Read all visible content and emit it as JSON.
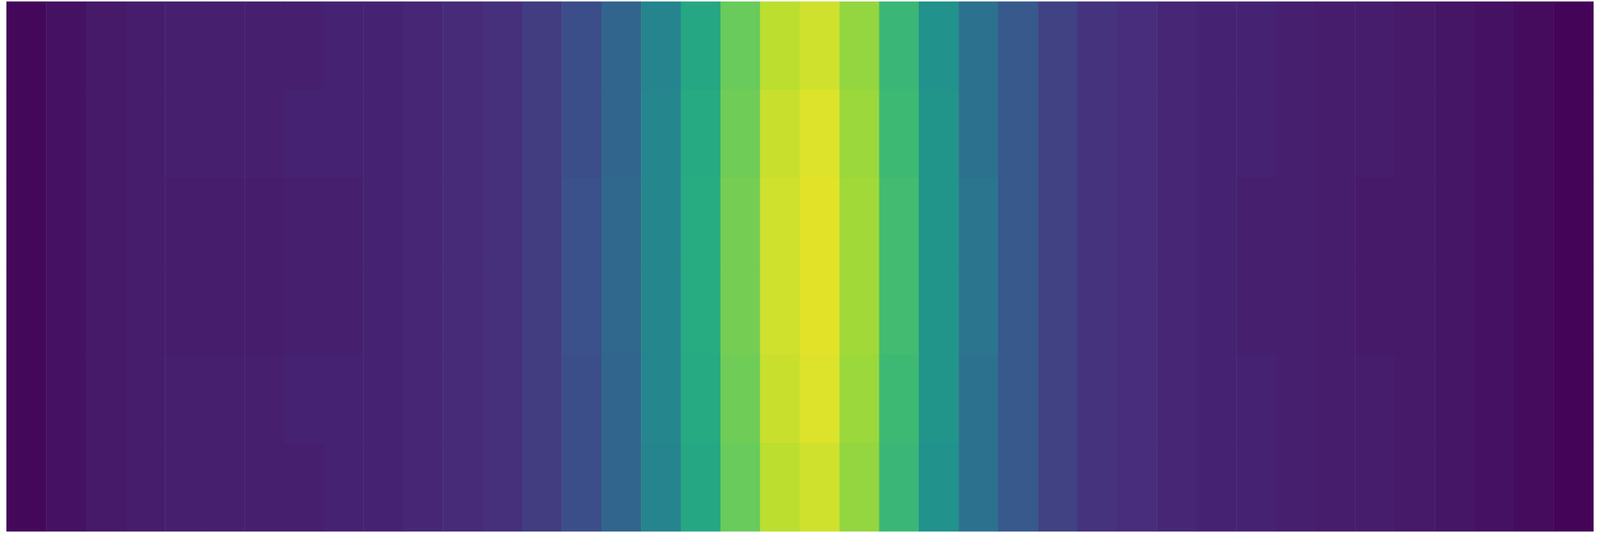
{
  "chart_data": {
    "type": "heatmap",
    "tick_labels": false,
    "grid": false,
    "color_range": [
      0,
      1
    ],
    "cells": [
      [
        0.02,
        0.05,
        0.07,
        0.08,
        0.09,
        0.09,
        0.09,
        0.09,
        0.1,
        0.1,
        0.11,
        0.12,
        0.14,
        0.18,
        0.24,
        0.33,
        0.45,
        0.6,
        0.77,
        0.9,
        0.93,
        0.84,
        0.67,
        0.51,
        0.38,
        0.28,
        0.2,
        0.15,
        0.13,
        0.11,
        0.1,
        0.1,
        0.09,
        0.08,
        0.08,
        0.07,
        0.06,
        0.05,
        0.03,
        0.01
      ],
      [
        0.02,
        0.05,
        0.07,
        0.08,
        0.09,
        0.09,
        0.09,
        0.1,
        0.1,
        0.1,
        0.11,
        0.12,
        0.14,
        0.18,
        0.24,
        0.33,
        0.46,
        0.61,
        0.78,
        0.92,
        0.95,
        0.85,
        0.68,
        0.52,
        0.38,
        0.28,
        0.2,
        0.15,
        0.13,
        0.11,
        0.1,
        0.1,
        0.09,
        0.08,
        0.08,
        0.07,
        0.06,
        0.05,
        0.03,
        0.01
      ],
      [
        0.02,
        0.05,
        0.07,
        0.08,
        0.08,
        0.08,
        0.08,
        0.09,
        0.09,
        0.1,
        0.11,
        0.12,
        0.14,
        0.18,
        0.25,
        0.34,
        0.46,
        0.62,
        0.79,
        0.93,
        0.96,
        0.86,
        0.69,
        0.52,
        0.39,
        0.28,
        0.2,
        0.15,
        0.13,
        0.11,
        0.1,
        0.09,
        0.09,
        0.08,
        0.07,
        0.07,
        0.06,
        0.05,
        0.03,
        0.01
      ],
      [
        0.02,
        0.05,
        0.07,
        0.08,
        0.08,
        0.08,
        0.08,
        0.09,
        0.09,
        0.1,
        0.11,
        0.12,
        0.14,
        0.18,
        0.25,
        0.34,
        0.46,
        0.62,
        0.79,
        0.93,
        0.96,
        0.86,
        0.69,
        0.52,
        0.39,
        0.28,
        0.2,
        0.15,
        0.13,
        0.11,
        0.1,
        0.09,
        0.09,
        0.08,
        0.07,
        0.07,
        0.06,
        0.05,
        0.03,
        0.01
      ],
      [
        0.02,
        0.05,
        0.07,
        0.08,
        0.09,
        0.09,
        0.09,
        0.1,
        0.1,
        0.1,
        0.11,
        0.12,
        0.14,
        0.18,
        0.24,
        0.33,
        0.46,
        0.61,
        0.78,
        0.92,
        0.95,
        0.85,
        0.68,
        0.52,
        0.38,
        0.28,
        0.2,
        0.15,
        0.13,
        0.11,
        0.1,
        0.1,
        0.09,
        0.08,
        0.08,
        0.07,
        0.06,
        0.05,
        0.03,
        0.01
      ],
      [
        0.02,
        0.05,
        0.07,
        0.08,
        0.09,
        0.09,
        0.09,
        0.09,
        0.1,
        0.1,
        0.11,
        0.12,
        0.14,
        0.18,
        0.24,
        0.33,
        0.45,
        0.6,
        0.77,
        0.9,
        0.93,
        0.84,
        0.67,
        0.51,
        0.38,
        0.28,
        0.2,
        0.15,
        0.13,
        0.11,
        0.1,
        0.1,
        0.09,
        0.08,
        0.08,
        0.07,
        0.06,
        0.05,
        0.03,
        0.01
      ]
    ]
  }
}
